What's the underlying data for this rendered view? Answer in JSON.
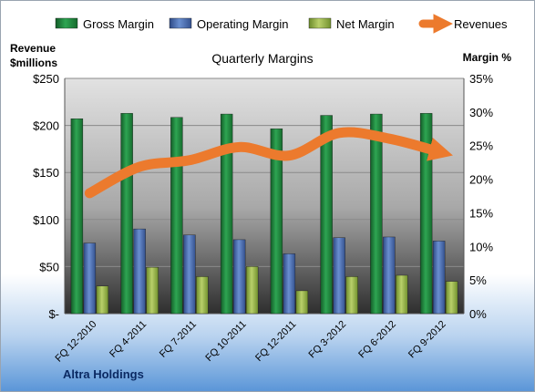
{
  "chart_data": {
    "type": "bar",
    "title": "Quarterly Margins",
    "company": "Altra Holdings",
    "ylabel_left": "Revenue $millions",
    "ylabel_right": "Margin %",
    "categories": [
      "FQ 12-2010",
      "FQ 4-2011",
      "FQ 7-2011",
      "FQ 10-2011",
      "FQ 12-2011",
      "FQ 3-2012",
      "FQ 6-2012",
      "FQ 9-2012"
    ],
    "left_axis": {
      "min": 0,
      "max": 250,
      "ticks": [
        0,
        50,
        100,
        150,
        200,
        250
      ],
      "tick_labels": [
        "$-",
        "$50",
        "$100",
        "$150",
        "$200",
        "$250"
      ]
    },
    "right_axis": {
      "min": 0,
      "max": 35,
      "ticks": [
        0,
        5,
        10,
        15,
        20,
        25,
        30,
        35
      ],
      "tick_labels": [
        "0%",
        "5%",
        "10%",
        "15%",
        "20%",
        "25%",
        "30%",
        "35%"
      ]
    },
    "series": [
      {
        "name": "Gross Margin",
        "kind": "bar",
        "axis": "right",
        "color": "#1e8a3c",
        "values": [
          29.0,
          29.8,
          29.2,
          29.7,
          27.5,
          29.5,
          29.7,
          29.8
        ]
      },
      {
        "name": "Operating Margin",
        "kind": "bar",
        "axis": "right",
        "color": "#4a6fb5",
        "values": [
          10.5,
          12.6,
          11.7,
          11.0,
          8.9,
          11.3,
          11.4,
          10.8
        ]
      },
      {
        "name": "Net Margin",
        "kind": "bar",
        "axis": "right",
        "color": "#9ab548",
        "values": [
          4.1,
          6.9,
          5.5,
          7.0,
          3.4,
          5.5,
          5.7,
          4.8
        ]
      },
      {
        "name": "Revenues",
        "kind": "line",
        "axis": "left",
        "color": "#ec7a2d",
        "values": [
          128,
          156,
          163,
          177,
          168,
          192,
          186,
          172
        ]
      }
    ],
    "legend_position": "top",
    "grid": true
  }
}
